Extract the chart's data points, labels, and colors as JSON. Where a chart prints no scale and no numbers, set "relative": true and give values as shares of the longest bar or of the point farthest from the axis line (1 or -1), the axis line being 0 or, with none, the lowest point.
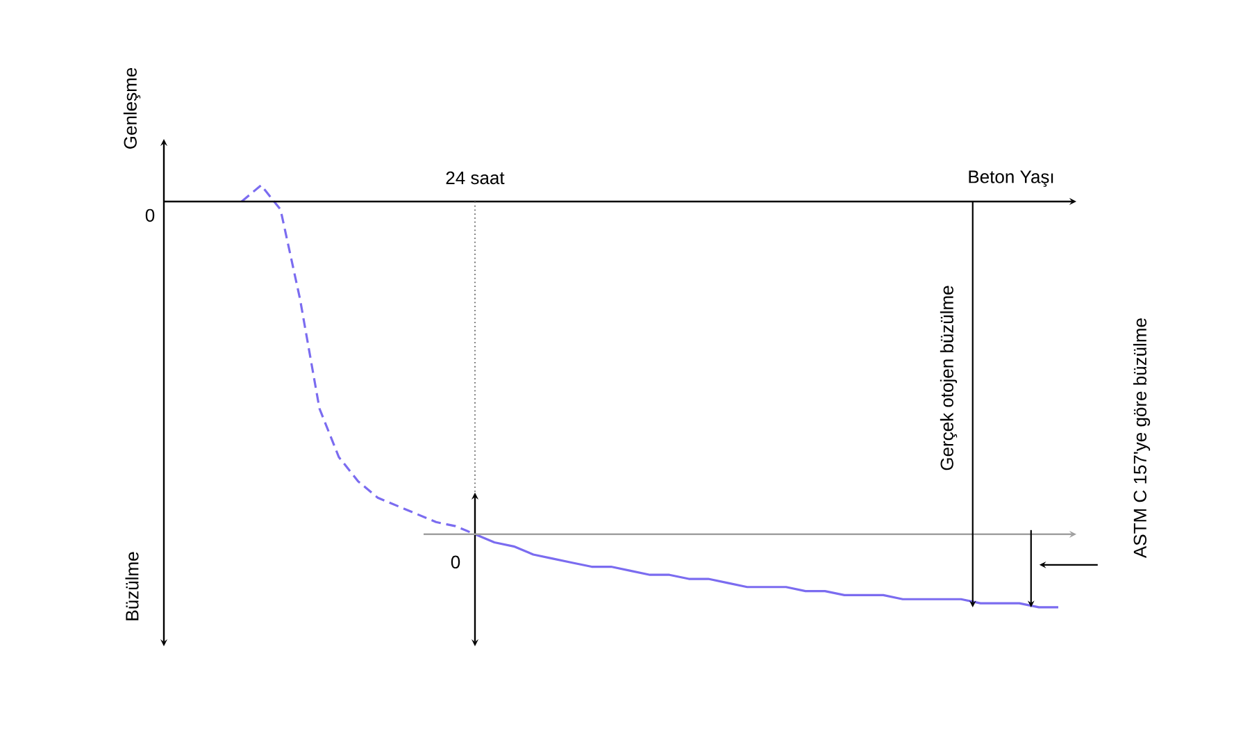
{
  "chart_data": {
    "type": "line",
    "relative": true,
    "xlabel": "Beton Yaşı",
    "categories": [
      null,
      null,
      null,
      null,
      null,
      null,
      null,
      null,
      null,
      null,
      null,
      null,
      null,
      null,
      null,
      null,
      null,
      null,
      null,
      null,
      null,
      null,
      null,
      null,
      null,
      null,
      null,
      null,
      null,
      null,
      null,
      null,
      null,
      null,
      null,
      null,
      null,
      null,
      null,
      null,
      null,
      null,
      null,
      null,
      null,
      null,
      null
    ],
    "series": [
      {
        "color": "#7b6cf0",
        "line_style": "dashed",
        "values": [
          null,
          null,
          null,
          null,
          0,
          0.04,
          -0.02,
          -0.24,
          -0.51,
          -0.63,
          -0.69,
          -0.73,
          -0.75,
          -0.77,
          -0.79,
          -0.8,
          -0.82,
          null,
          null,
          null,
          null,
          null,
          null,
          null,
          null,
          null,
          null,
          null,
          null,
          null,
          null,
          null,
          null,
          null,
          null,
          null,
          null,
          null,
          null,
          null,
          null,
          null,
          null,
          null,
          null,
          null,
          null
        ]
      },
      {
        "color": "#7b6cf0",
        "line_style": "solid",
        "values": [
          null,
          null,
          null,
          null,
          null,
          null,
          null,
          null,
          null,
          null,
          null,
          null,
          null,
          null,
          null,
          null,
          -0.82,
          -0.84,
          -0.85,
          -0.87,
          -0.88,
          -0.89,
          -0.9,
          -0.9,
          -0.91,
          -0.92,
          -0.92,
          -0.93,
          -0.93,
          -0.94,
          -0.95,
          -0.95,
          -0.95,
          -0.96,
          -0.96,
          -0.97,
          -0.97,
          -0.97,
          -0.98,
          -0.98,
          -0.98,
          -0.98,
          -0.99,
          -0.99,
          -0.99,
          -1.0,
          -1.0
        ]
      }
    ],
    "ref_lines": [
      {
        "axis": "y",
        "value": -0.82,
        "color": "#a0a0a0"
      }
    ],
    "annotations": [
      "Genleşme",
      "Büzülme",
      "0",
      "0",
      "Gerçek otojen büzülme",
      "ASTM C 157'ye göre büzülme",
      "24 saat"
    ]
  }
}
